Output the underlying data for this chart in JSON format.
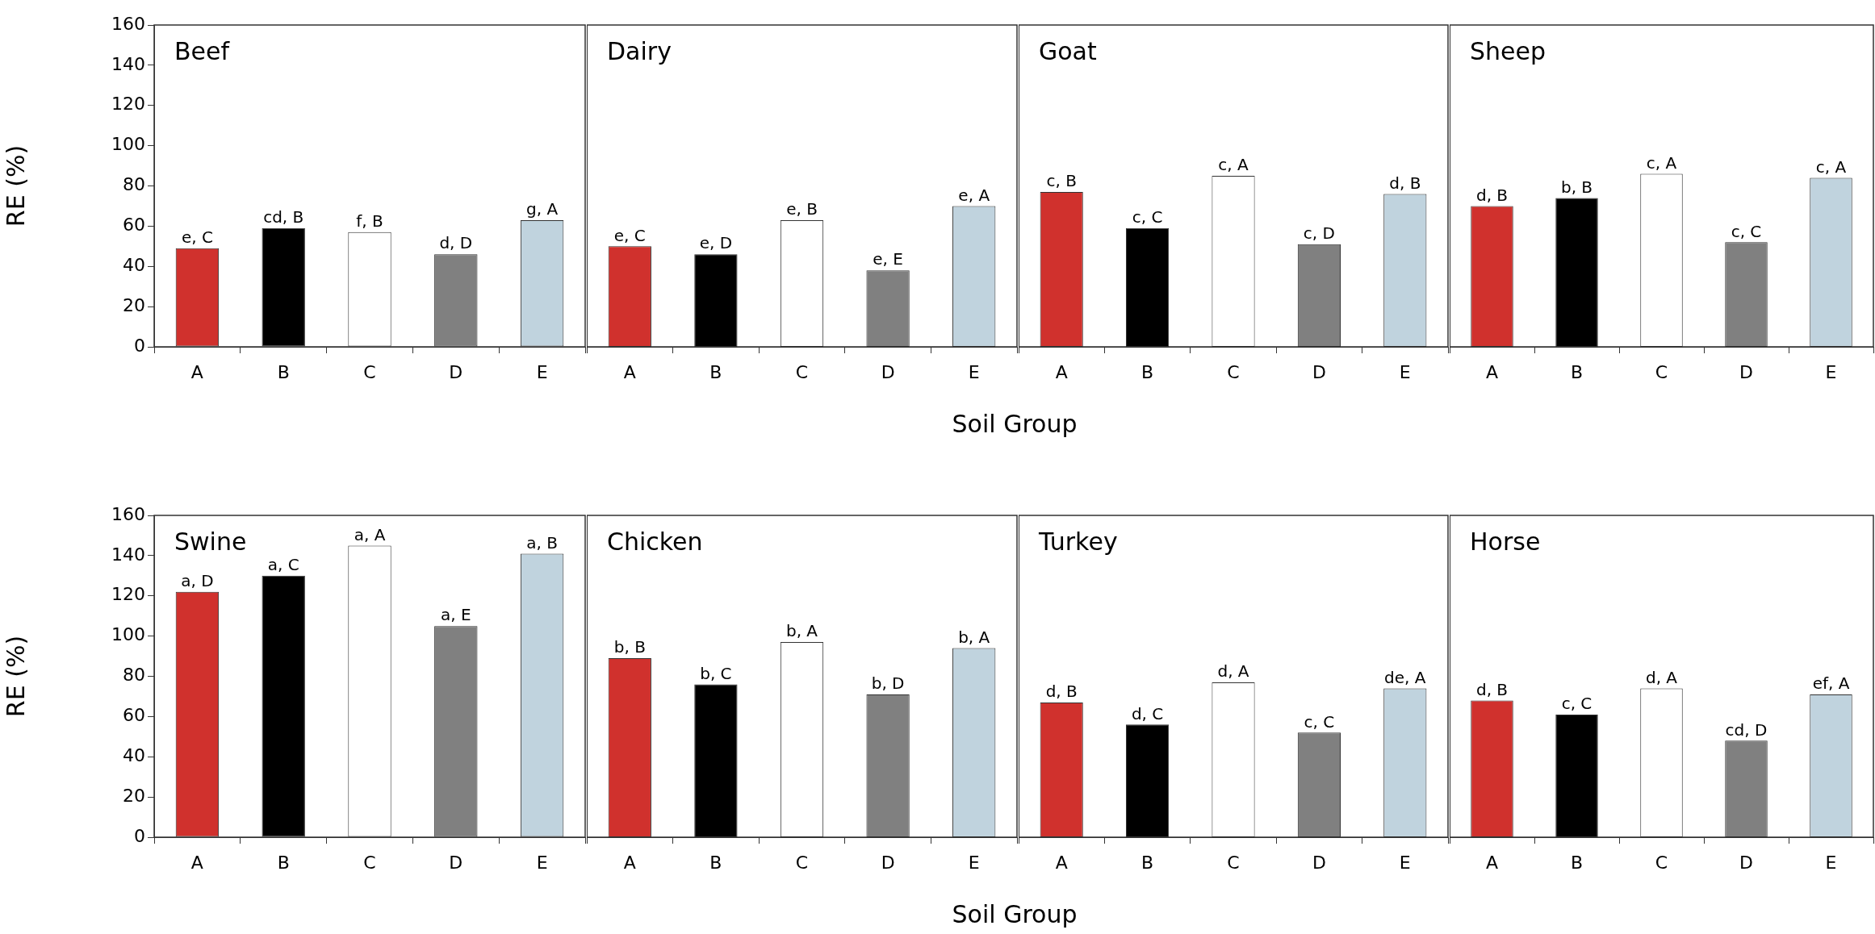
{
  "chart_data": [
    {
      "type": "bar",
      "title": "Beef",
      "ylabel": "RE (%)",
      "categories": [
        "A",
        "B",
        "C",
        "D",
        "E"
      ],
      "values": [
        49,
        59,
        57,
        46,
        63
      ],
      "colors": [
        "#d0312d",
        "#000000",
        "#ffffff",
        "#808080",
        "#c0d3de"
      ],
      "value_labels": [
        "e, C",
        "cd, B",
        "f, B",
        "d, D",
        "g, A"
      ],
      "ylim": [
        0,
        160
      ],
      "yticks": [
        0,
        20,
        40,
        60,
        80,
        100,
        120,
        140,
        160
      ],
      "grid": false,
      "legend": false
    },
    {
      "type": "bar",
      "title": "Dairy",
      "xlabel": "Soil Group",
      "categories": [
        "A",
        "B",
        "C",
        "D",
        "E"
      ],
      "values": [
        50,
        46,
        63,
        38,
        70
      ],
      "colors": [
        "#d0312d",
        "#000000",
        "#ffffff",
        "#808080",
        "#c0d3de"
      ],
      "value_labels": [
        "e, C",
        "e, D",
        "e, B",
        "e, E",
        "e, A"
      ],
      "ylim": [
        0,
        160
      ],
      "yticks": [
        0,
        20,
        40,
        60,
        80,
        100,
        120,
        140,
        160
      ],
      "tick_labels": "x",
      "grid": false,
      "legend": false
    },
    {
      "type": "bar",
      "title": "Goat",
      "categories": [
        "A",
        "B",
        "C",
        "D",
        "E"
      ],
      "values": [
        77,
        59,
        85,
        51,
        76
      ],
      "colors": [
        "#d0312d",
        "#000000",
        "#ffffff",
        "#808080",
        "#c0d3de"
      ],
      "value_labels": [
        "c, B",
        "c, C",
        "c, A",
        "c, D",
        "d, B"
      ],
      "ylim": [
        0,
        160
      ],
      "yticks": [
        0,
        20,
        40,
        60,
        80,
        100,
        120,
        140,
        160
      ],
      "tick_labels": "x",
      "grid": false,
      "legend": false
    },
    {
      "type": "bar",
      "title": "Sheep",
      "categories": [
        "A",
        "B",
        "C",
        "D",
        "E"
      ],
      "values": [
        70,
        74,
        86,
        52,
        84
      ],
      "colors": [
        "#d0312d",
        "#000000",
        "#ffffff",
        "#808080",
        "#c0d3de"
      ],
      "value_labels": [
        "d, B",
        "b, B",
        "c, A",
        "c, C",
        "c, A"
      ],
      "ylim": [
        0,
        160
      ],
      "yticks": [
        0,
        20,
        40,
        60,
        80,
        100,
        120,
        140,
        160
      ],
      "tick_labels": "x",
      "grid": false,
      "legend": false
    },
    {
      "type": "bar",
      "title": "Swine",
      "ylabel": "RE (%)",
      "categories": [
        "A",
        "B",
        "C",
        "D",
        "E"
      ],
      "values": [
        122,
        130,
        145,
        105,
        141
      ],
      "colors": [
        "#d0312d",
        "#000000",
        "#ffffff",
        "#808080",
        "#c0d3de"
      ],
      "value_labels": [
        "a, D",
        "a, C",
        "a, A",
        "a, E",
        "a, B"
      ],
      "ylim": [
        0,
        160
      ],
      "yticks": [
        0,
        20,
        40,
        60,
        80,
        100,
        120,
        140,
        160
      ],
      "grid": false,
      "legend": false
    },
    {
      "type": "bar",
      "title": "Chicken",
      "xlabel": "Soil Group",
      "categories": [
        "A",
        "B",
        "C",
        "D",
        "E"
      ],
      "values": [
        89,
        76,
        97,
        71,
        94
      ],
      "colors": [
        "#d0312d",
        "#000000",
        "#ffffff",
        "#808080",
        "#c0d3de"
      ],
      "value_labels": [
        "b, B",
        "b, C",
        "b, A",
        "b, D",
        "b, A"
      ],
      "ylim": [
        0,
        160
      ],
      "yticks": [
        0,
        20,
        40,
        60,
        80,
        100,
        120,
        140,
        160
      ],
      "tick_labels": "x",
      "grid": false,
      "legend": false
    },
    {
      "type": "bar",
      "title": "Turkey",
      "categories": [
        "A",
        "B",
        "C",
        "D",
        "E"
      ],
      "values": [
        67,
        56,
        77,
        52,
        74
      ],
      "colors": [
        "#d0312d",
        "#000000",
        "#ffffff",
        "#808080",
        "#c0d3de"
      ],
      "value_labels": [
        "d, B",
        "d, C",
        "d, A",
        "c, C",
        "de, A"
      ],
      "ylim": [
        0,
        160
      ],
      "yticks": [
        0,
        20,
        40,
        60,
        80,
        100,
        120,
        140,
        160
      ],
      "tick_labels": "x",
      "grid": false,
      "legend": false
    },
    {
      "type": "bar",
      "title": "Horse",
      "categories": [
        "A",
        "B",
        "C",
        "D",
        "E"
      ],
      "values": [
        68,
        61,
        74,
        48,
        71
      ],
      "colors": [
        "#d0312d",
        "#000000",
        "#ffffff",
        "#808080",
        "#c0d3de"
      ],
      "value_labels": [
        "d, B",
        "c, C",
        "d, A",
        "cd, D",
        "ef, A"
      ],
      "ylim": [
        0,
        160
      ],
      "yticks": [
        0,
        20,
        40,
        60,
        80,
        100,
        120,
        140,
        160
      ],
      "tick_labels": "x",
      "grid": false,
      "legend": false
    }
  ]
}
